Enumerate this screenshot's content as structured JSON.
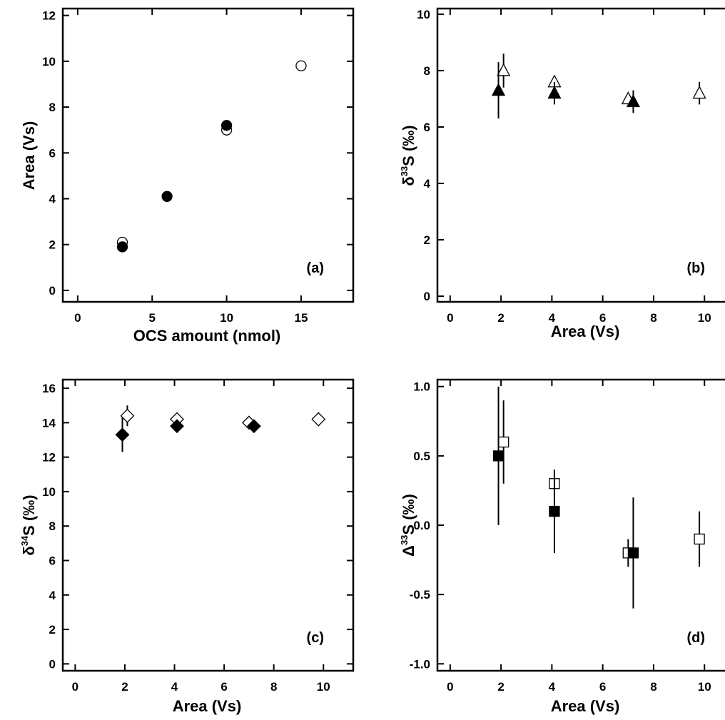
{
  "chart_data": [
    {
      "type": "scatter",
      "panel_label": "(a)",
      "xlabel": "OCS amount (nmol)",
      "ylabel": "Area (Vs)",
      "xlim": [
        -1,
        18.5
      ],
      "ylim": [
        -0.5,
        12.3
      ],
      "xticks": [
        0,
        5,
        10,
        15
      ],
      "yticks": [
        0,
        2,
        4,
        6,
        8,
        10,
        12
      ],
      "series": [
        {
          "marker": "circle",
          "filled": false,
          "points": [
            {
              "x": 3,
              "y": 2.1
            },
            {
              "x": 10,
              "y": 7.0
            },
            {
              "x": 15,
              "y": 9.8
            }
          ]
        },
        {
          "marker": "circle",
          "filled": true,
          "points": [
            {
              "x": 3,
              "y": 1.9
            },
            {
              "x": 6,
              "y": 4.1
            },
            {
              "x": 10,
              "y": 7.2
            }
          ]
        }
      ]
    },
    {
      "type": "scatter",
      "panel_label": "(b)",
      "xlabel": "Area (Vs)",
      "ylabel_prefix": "δ",
      "ylabel_sup": "33",
      "ylabel_suffix": "S (‰)",
      "xlim": [
        -0.5,
        11.2
      ],
      "ylim": [
        -0.2,
        10.2
      ],
      "xticks": [
        0,
        2,
        4,
        6,
        8,
        10
      ],
      "yticks": [
        0,
        2,
        4,
        6,
        8,
        10
      ],
      "series": [
        {
          "marker": "triangle",
          "filled": false,
          "points": [
            {
              "x": 2.1,
              "y": 8.0,
              "err": 0.6
            },
            {
              "x": 4.1,
              "y": 7.6,
              "err": 0.2
            },
            {
              "x": 7.0,
              "y": 7.0,
              "err": 0.2
            },
            {
              "x": 9.8,
              "y": 7.2,
              "err": 0.4
            }
          ]
        },
        {
          "marker": "triangle",
          "filled": true,
          "points": [
            {
              "x": 1.9,
              "y": 7.3,
              "err": 1.0
            },
            {
              "x": 4.1,
              "y": 7.2,
              "err": 0.4
            },
            {
              "x": 7.2,
              "y": 6.9,
              "err": 0.4
            }
          ]
        }
      ]
    },
    {
      "type": "scatter",
      "panel_label": "(c)",
      "xlabel": "Area (Vs)",
      "ylabel_prefix": "δ",
      "ylabel_sup": "34",
      "ylabel_suffix": "S (‰)",
      "xlim": [
        -0.5,
        11.2
      ],
      "ylim": [
        -0.4,
        16.5
      ],
      "xticks": [
        0,
        2,
        4,
        6,
        8,
        10
      ],
      "yticks": [
        0,
        2,
        4,
        6,
        8,
        10,
        12,
        14,
        16
      ],
      "series": [
        {
          "marker": "diamond",
          "filled": false,
          "points": [
            {
              "x": 2.1,
              "y": 14.4,
              "err": 0.6
            },
            {
              "x": 4.1,
              "y": 14.2,
              "err": 0.2
            },
            {
              "x": 7.0,
              "y": 14.0,
              "err": 0.2
            },
            {
              "x": 9.8,
              "y": 14.2,
              "err": 0.4
            }
          ]
        },
        {
          "marker": "diamond",
          "filled": true,
          "points": [
            {
              "x": 1.9,
              "y": 13.3,
              "err": 1.0
            },
            {
              "x": 4.1,
              "y": 13.8,
              "err": 0.3
            },
            {
              "x": 7.2,
              "y": 13.8,
              "err": 0.2
            }
          ]
        }
      ]
    },
    {
      "type": "scatter",
      "panel_label": "(d)",
      "xlabel": "Area (Vs)",
      "ylabel_prefix": "Δ",
      "ylabel_sup": "33",
      "ylabel_suffix": "S (‰)",
      "xlim": [
        -0.5,
        11.2
      ],
      "ylim": [
        -1.05,
        1.05
      ],
      "xticks": [
        0,
        2,
        4,
        6,
        8,
        10
      ],
      "yticks": [
        -1.0,
        -0.5,
        0.0,
        0.5,
        1.0
      ],
      "ytick_labels": [
        "-1.0",
        "-0.5",
        "0.0",
        "0.5",
        "1.0"
      ],
      "series": [
        {
          "marker": "square",
          "filled": false,
          "points": [
            {
              "x": 2.1,
              "y": 0.6,
              "err": 0.3
            },
            {
              "x": 4.1,
              "y": 0.3,
              "err": 0.1
            },
            {
              "x": 7.0,
              "y": -0.2,
              "err": 0.1
            },
            {
              "x": 9.8,
              "y": -0.1,
              "err": 0.2
            }
          ]
        },
        {
          "marker": "square",
          "filled": true,
          "points": [
            {
              "x": 1.9,
              "y": 0.5,
              "err": 0.5
            },
            {
              "x": 4.1,
              "y": 0.1,
              "err": 0.3
            },
            {
              "x": 7.2,
              "y": -0.2,
              "err": 0.4
            }
          ]
        }
      ]
    }
  ]
}
